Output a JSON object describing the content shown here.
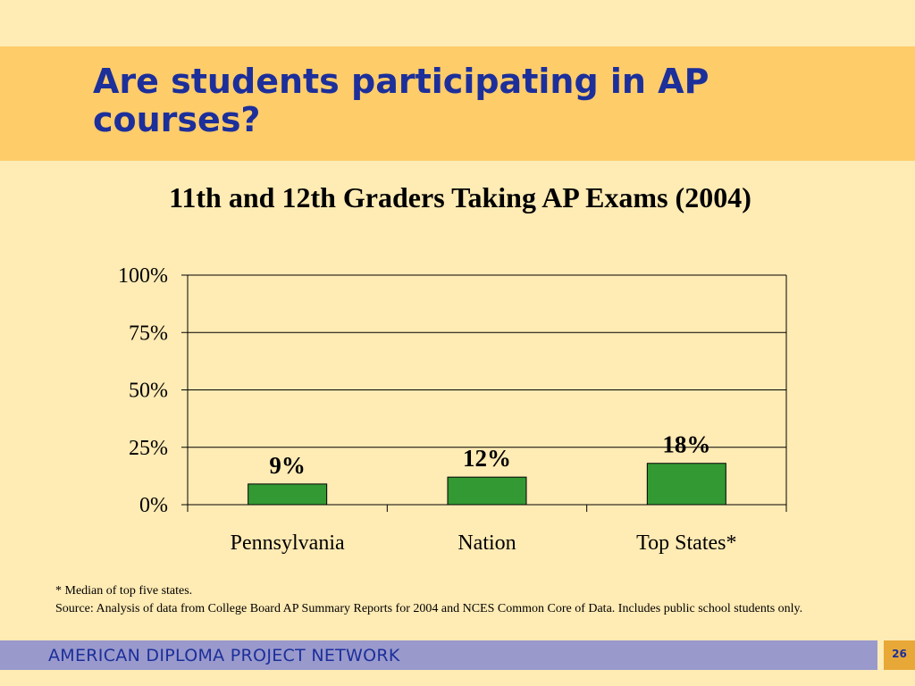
{
  "slide": {
    "title": "Are students participating in AP courses?",
    "footnote_star": "* Median of top five states.",
    "footnote_source": "Source:  Analysis of data from College Board AP Summary Reports for 2004 and NCES Common Core of Data.  Includes public school students only.",
    "footer_text": "AMERICAN DIPLOMA PROJECT NETWORK",
    "page_number": "26"
  },
  "colors": {
    "background": "#ffebb4",
    "title_band": "#ffcc6a",
    "title_text": "#1c2f9a",
    "bar_fill": "#339933",
    "footer_bar": "#9999cc",
    "page_box": "#e8a838"
  },
  "chart_data": {
    "type": "bar",
    "title": "11th and 12th Graders Taking AP Exams (2004)",
    "categories": [
      "Pennsylvania",
      "Nation",
      "Top States*"
    ],
    "values": [
      9,
      12,
      18
    ],
    "data_labels": [
      "9%",
      "12%",
      "18%"
    ],
    "y_ticks": [
      "0%",
      "25%",
      "50%",
      "75%",
      "100%"
    ],
    "ylim": [
      0,
      100
    ],
    "grid": true,
    "legend": false,
    "xlabel": "",
    "ylabel": ""
  }
}
